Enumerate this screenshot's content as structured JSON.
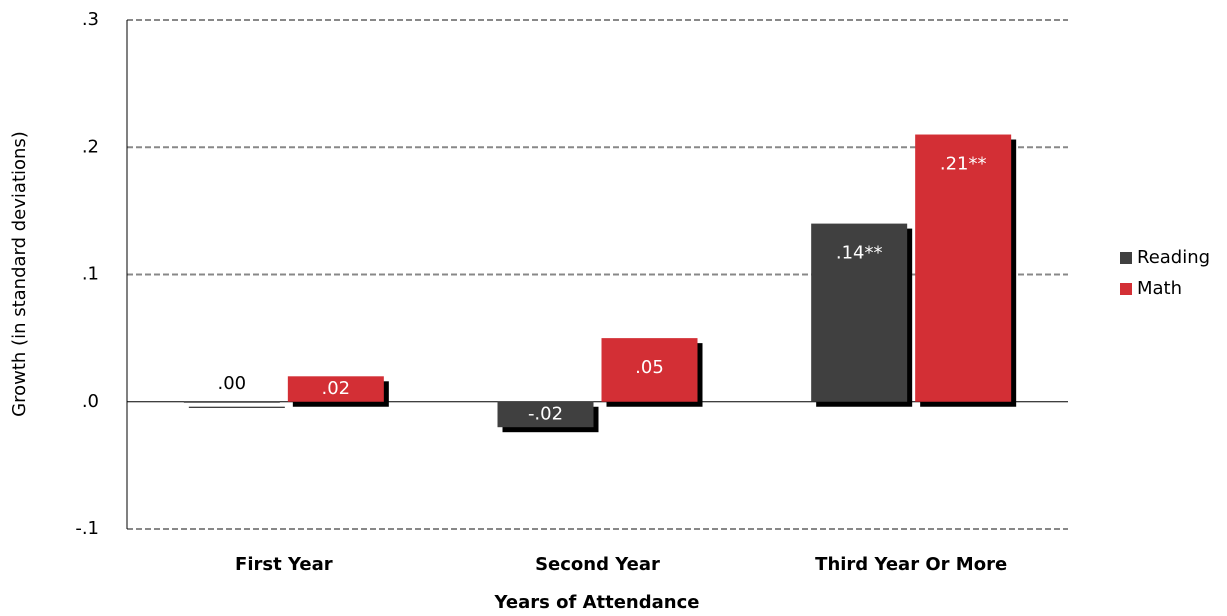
{
  "chart_data": {
    "type": "bar",
    "x_label": "Years of Attendance",
    "y_label": "Growth (in standard deviations)",
    "categories": [
      "First Year",
      "Second Year",
      "Third Year Or More"
    ],
    "series": [
      {
        "name": "Reading",
        "color": "#404040",
        "values": [
          0.0,
          -0.02,
          0.14
        ],
        "value_labels": [
          ".00",
          "-.02",
          ".14**"
        ]
      },
      {
        "name": "Math",
        "color": "#d32f35",
        "values": [
          0.02,
          0.05,
          0.21
        ],
        "value_labels": [
          ".02",
          ".05",
          ".21**"
        ]
      }
    ],
    "ylim": [
      -0.1,
      0.3
    ],
    "yticks": [
      {
        "value": -0.1,
        "label": "-.1"
      },
      {
        "value": 0,
        "label": ".0"
      },
      {
        "value": 0.1,
        "label": ".1"
      },
      {
        "value": 0.2,
        "label": ".2"
      },
      {
        "value": 0.3,
        "label": ".3"
      }
    ],
    "grid": true,
    "legend": "right"
  }
}
